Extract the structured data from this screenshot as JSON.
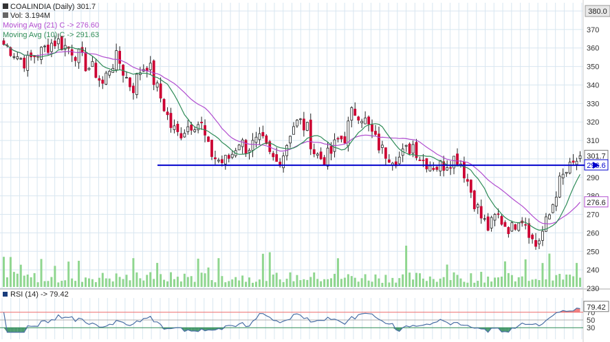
{
  "legend": {
    "title": "COALINDIA (Daily) 301.7",
    "volume": "Vol: 3.194M",
    "ma21": "Moving Avg (21) C -> 276.60",
    "ma10": "Moving Avg (10) C -> 291.63",
    "rsi": "RSI (14) -> 79.42"
  },
  "colors": {
    "up": "#ffffff",
    "down": "#cc0033",
    "ma21": "#b04ccf",
    "ma10": "#2e8b57",
    "support": "#0000cc",
    "volume": "#8fd68f",
    "rsi_line": "#4a6fa5",
    "rsi_over": "#ee6a6a",
    "rsi_under": "#2e8b57",
    "grid": "#d8e6f0"
  },
  "chart_data": [
    {
      "type": "candlestick",
      "ylim": [
        230,
        380
      ],
      "yticks": [
        230,
        240,
        250,
        260,
        270,
        280,
        290,
        300,
        310,
        320,
        330,
        340,
        350,
        360,
        370,
        380
      ],
      "price_labels": {
        "top": "380.0",
        "last": "301.7",
        "ma21": "276.6",
        "support": "296.6"
      },
      "support_level": 296.6,
      "close_path": [
        362,
        359,
        355,
        352,
        356,
        358,
        362,
        364,
        361,
        359,
        355,
        350,
        348,
        340,
        350,
        355,
        345,
        338,
        348,
        352,
        340,
        330,
        318,
        313,
        317,
        320,
        319,
        305,
        300,
        298,
        302,
        310,
        306,
        308,
        310,
        302,
        298,
        304,
        318,
        320,
        316,
        303,
        300,
        302,
        310,
        312,
        326,
        325,
        318,
        310,
        304,
        302,
        300,
        304,
        308,
        300,
        298,
        296,
        297,
        300,
        301,
        290,
        278,
        268,
        262,
        270,
        265,
        262,
        270,
        265,
        252,
        260,
        270,
        285,
        292,
        296,
        301.7
      ],
      "ma10_end": 291.63,
      "ma21_end": 276.6
    },
    {
      "type": "bar",
      "series": [
        {
          "name": "Vol",
          "last": "3.194M"
        }
      ]
    },
    {
      "type": "line",
      "title": "RSI (14)",
      "ylim": [
        0,
        100
      ],
      "yticks": [
        30,
        50,
        70
      ],
      "last": 79.42,
      "last_label": "79.42"
    }
  ]
}
